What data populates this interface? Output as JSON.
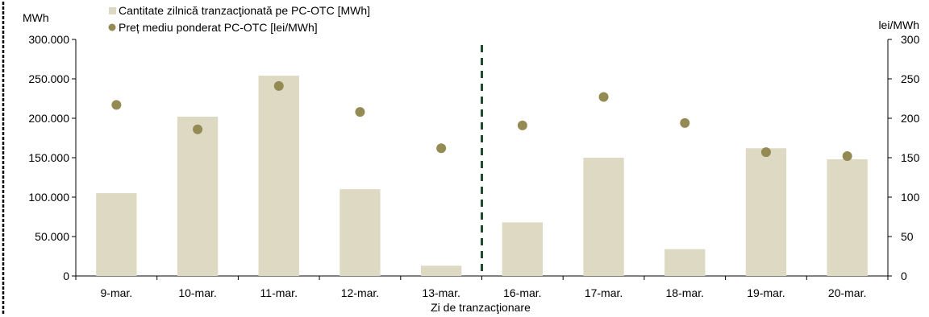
{
  "chart_data": {
    "type": "bar",
    "categories": [
      "9-mar.",
      "10-mar.",
      "11-mar.",
      "12-mar.",
      "13-mar.",
      "16-mar.",
      "17-mar.",
      "18-mar.",
      "19-mar.",
      "20-mar."
    ],
    "series": [
      {
        "name": "Cantitate zilnică tranzacţionată pe PC-OTC [MWh]",
        "kind": "bar",
        "axis": "left",
        "color": "#ddd9c3",
        "values": [
          105000,
          202000,
          254000,
          110000,
          13000,
          68000,
          150000,
          34000,
          162000,
          148000
        ]
      },
      {
        "name": "Preț mediu ponderat PC-OTC [lei/MWh]",
        "kind": "scatter",
        "axis": "right",
        "color": "#948a54",
        "values": [
          217,
          186,
          241,
          208,
          162,
          191,
          227,
          194,
          157,
          152
        ]
      }
    ],
    "y_left": {
      "label": "MWh",
      "ylim": [
        0,
        300000
      ],
      "ticks": [
        "0",
        "50.000",
        "100.000",
        "150.000",
        "200.000",
        "250.000",
        "300.000"
      ]
    },
    "y_right": {
      "label": "lei/MWh",
      "ylim": [
        0,
        300
      ],
      "ticks": [
        "0",
        "50",
        "100",
        "150",
        "200",
        "250",
        "300"
      ]
    },
    "xlabel": "Zi de tranzacţionare",
    "separator": {
      "after_category": "13-mar.",
      "color": "#1e4d2b",
      "style": "dashed"
    },
    "legend_position": "top-left",
    "grid": false,
    "border_color": "#000000"
  }
}
